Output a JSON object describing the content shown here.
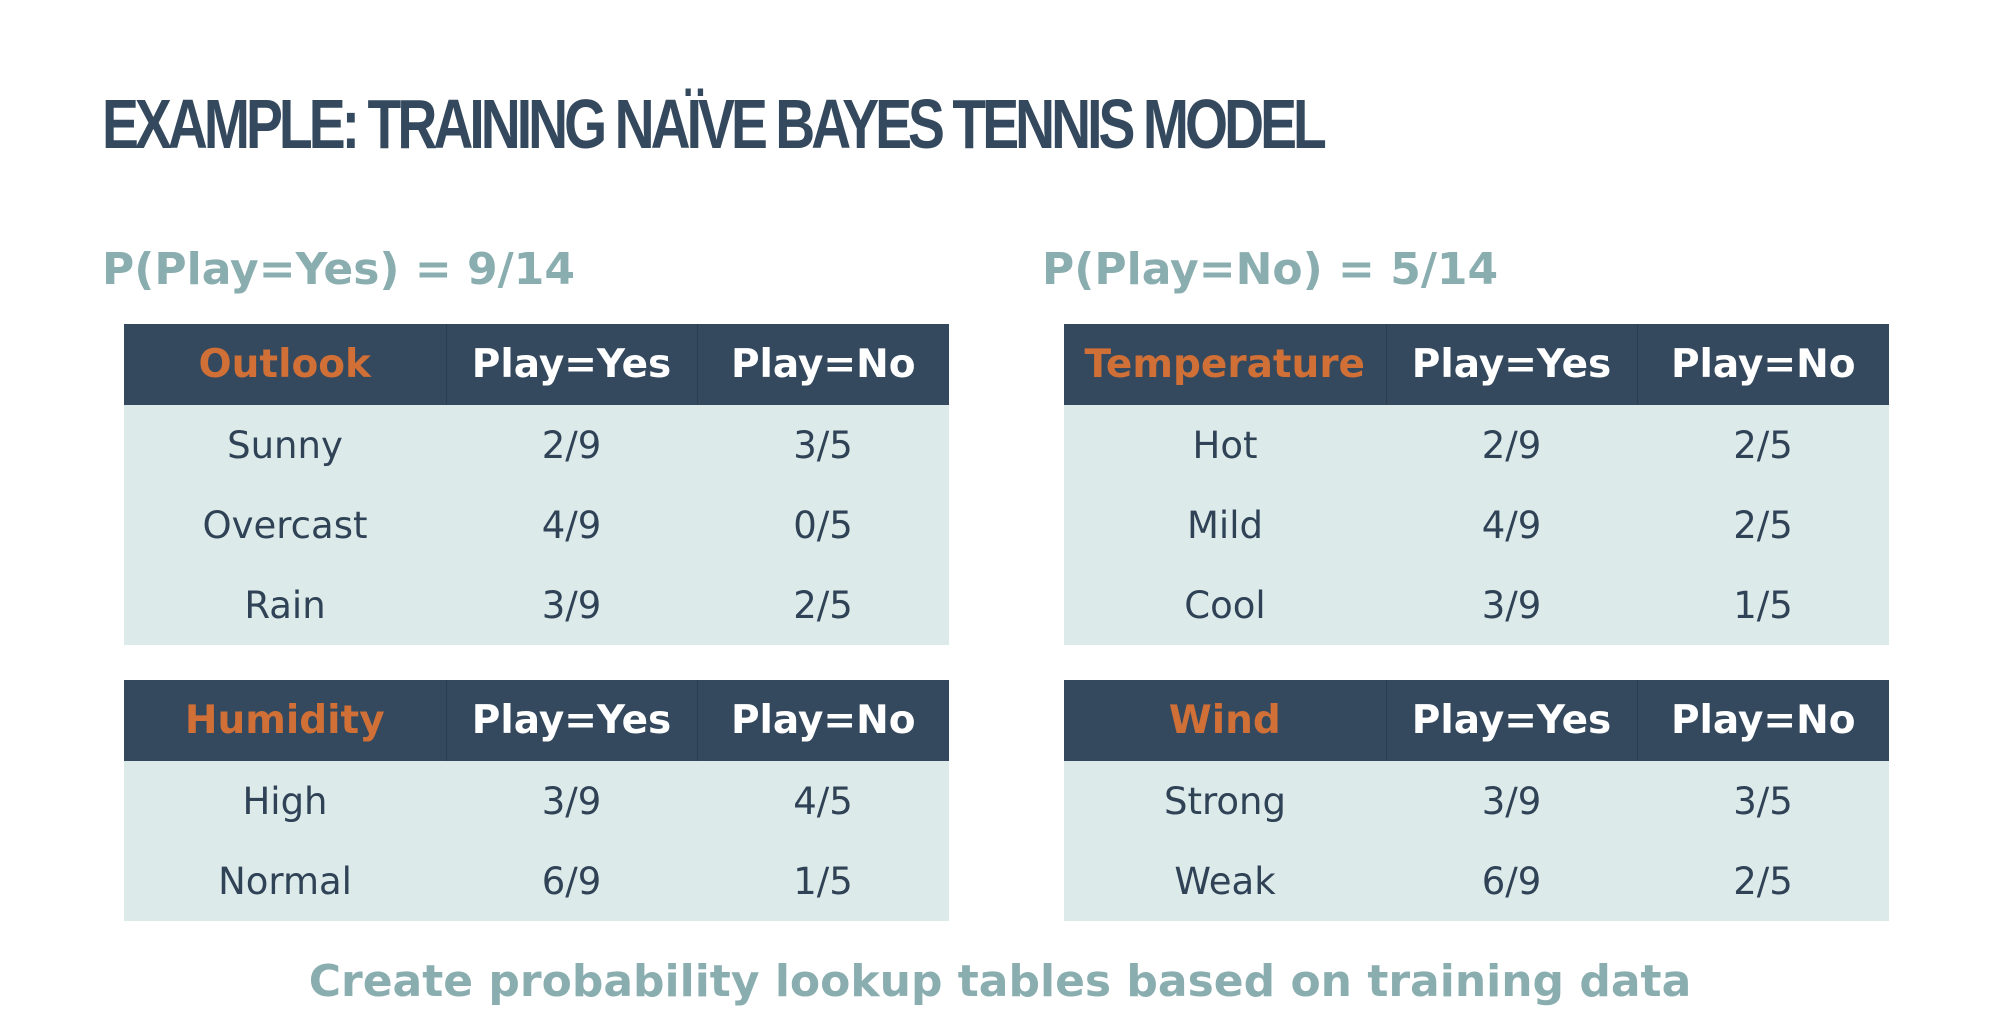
{
  "title": "EXAMPLE: TRAINING NAÏVE BAYES TENNIS MODEL",
  "priors": {
    "yes": "P(Play=Yes) = 9/14",
    "no": "P(Play=No) = 5/14"
  },
  "tables": {
    "outlook": {
      "header": [
        "Outlook",
        "Play=Yes",
        "Play=No"
      ],
      "rows": [
        [
          "Sunny",
          "2/9",
          "3/5"
        ],
        [
          "Overcast",
          "4/9",
          "0/5"
        ],
        [
          "Rain",
          "3/9",
          "2/5"
        ]
      ]
    },
    "temperature": {
      "header": [
        "Temperature",
        "Play=Yes",
        "Play=No"
      ],
      "rows": [
        [
          "Hot",
          "2/9",
          "2/5"
        ],
        [
          "Mild",
          "4/9",
          "2/5"
        ],
        [
          "Cool",
          "3/9",
          "1/5"
        ]
      ]
    },
    "humidity": {
      "header": [
        "Humidity",
        "Play=Yes",
        "Play=No"
      ],
      "rows": [
        [
          "High",
          "3/9",
          "4/5"
        ],
        [
          "Normal",
          "6/9",
          "1/5"
        ]
      ]
    },
    "wind": {
      "header": [
        "Wind",
        "Play=Yes",
        "Play=No"
      ],
      "rows": [
        [
          "Strong",
          "3/9",
          "3/5"
        ],
        [
          "Weak",
          "6/9",
          "2/5"
        ]
      ]
    }
  },
  "caption": "Create probability lookup tables based on training data",
  "colors": {
    "title": "#34495e",
    "header_bg": "#34495e",
    "header_attr_text": "#d06f36",
    "row_bg": "#ddeaea",
    "accent_text": "#8aadaf"
  }
}
